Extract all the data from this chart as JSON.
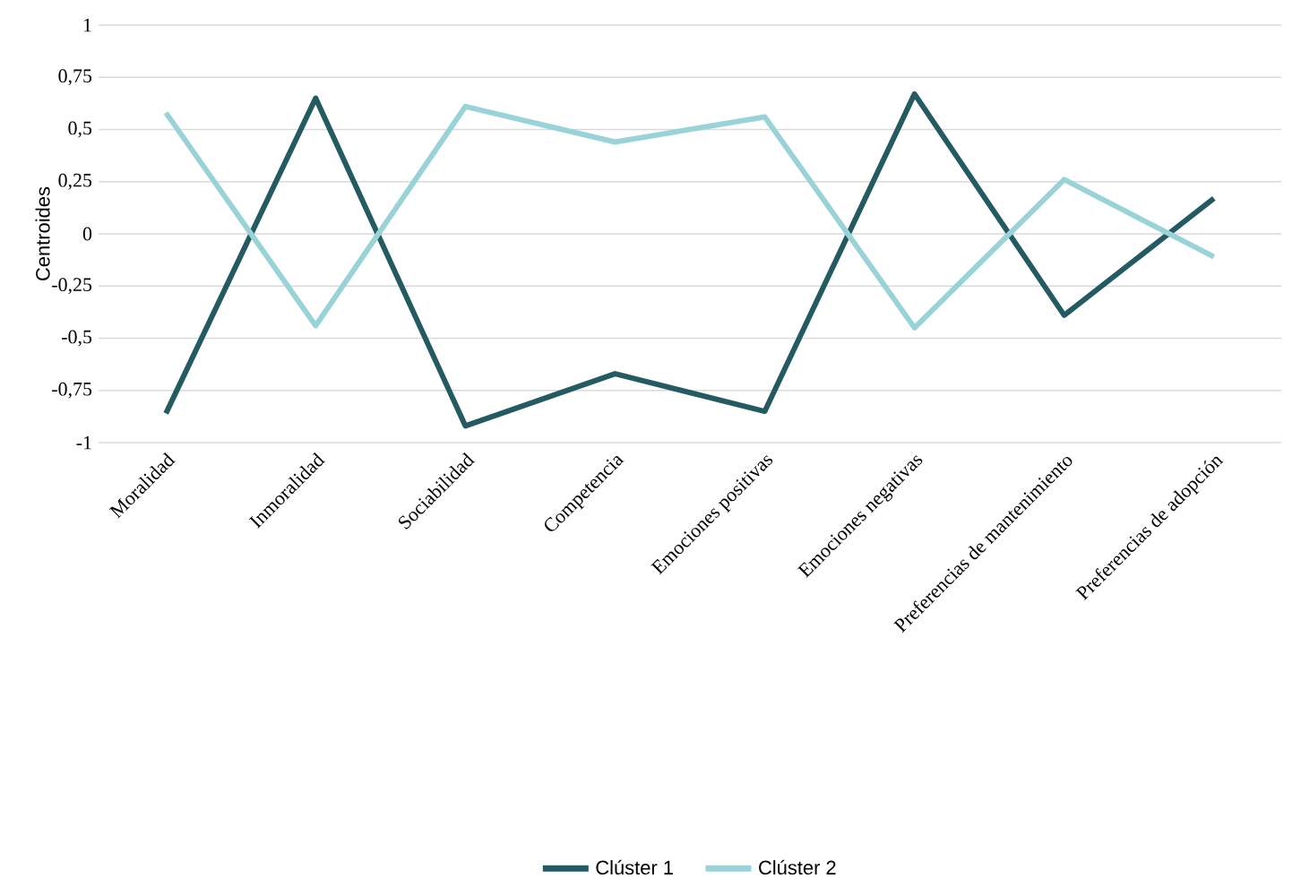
{
  "chart_data": {
    "type": "line",
    "ylabel": "Centroides",
    "categories": [
      "Moralidad",
      "Inmoralidad",
      "Sociabilidad",
      "Competencia",
      "Emociones positivas",
      "Emociones negativas",
      "Preferencias de mantenimiento",
      "Preferencias de adopción"
    ],
    "series": [
      {
        "name": "Clúster 1",
        "color": "#245a62",
        "values": [
          -0.86,
          0.65,
          -0.92,
          -0.67,
          -0.85,
          0.67,
          -0.39,
          0.17
        ]
      },
      {
        "name": "Clúster 2",
        "color": "#99d3d8",
        "values": [
          0.58,
          -0.44,
          0.61,
          0.44,
          0.56,
          -0.45,
          0.26,
          -0.11
        ]
      }
    ],
    "ylim": [
      -1,
      1
    ],
    "yticks": [
      -1,
      {
        "value": -0.75,
        "label": "-0,75"
      },
      {
        "value": -0.5,
        "label": "-0,5"
      },
      {
        "value": -0.25,
        "label": "-0,25"
      },
      0,
      {
        "value": 0.25,
        "label": "0,25"
      },
      {
        "value": 0.5,
        "label": "0,5"
      },
      {
        "value": 0.75,
        "label": "0,75"
      },
      1
    ],
    "grid": "y",
    "legend": "bottom",
    "marker": "none",
    "line_style": "solid"
  }
}
